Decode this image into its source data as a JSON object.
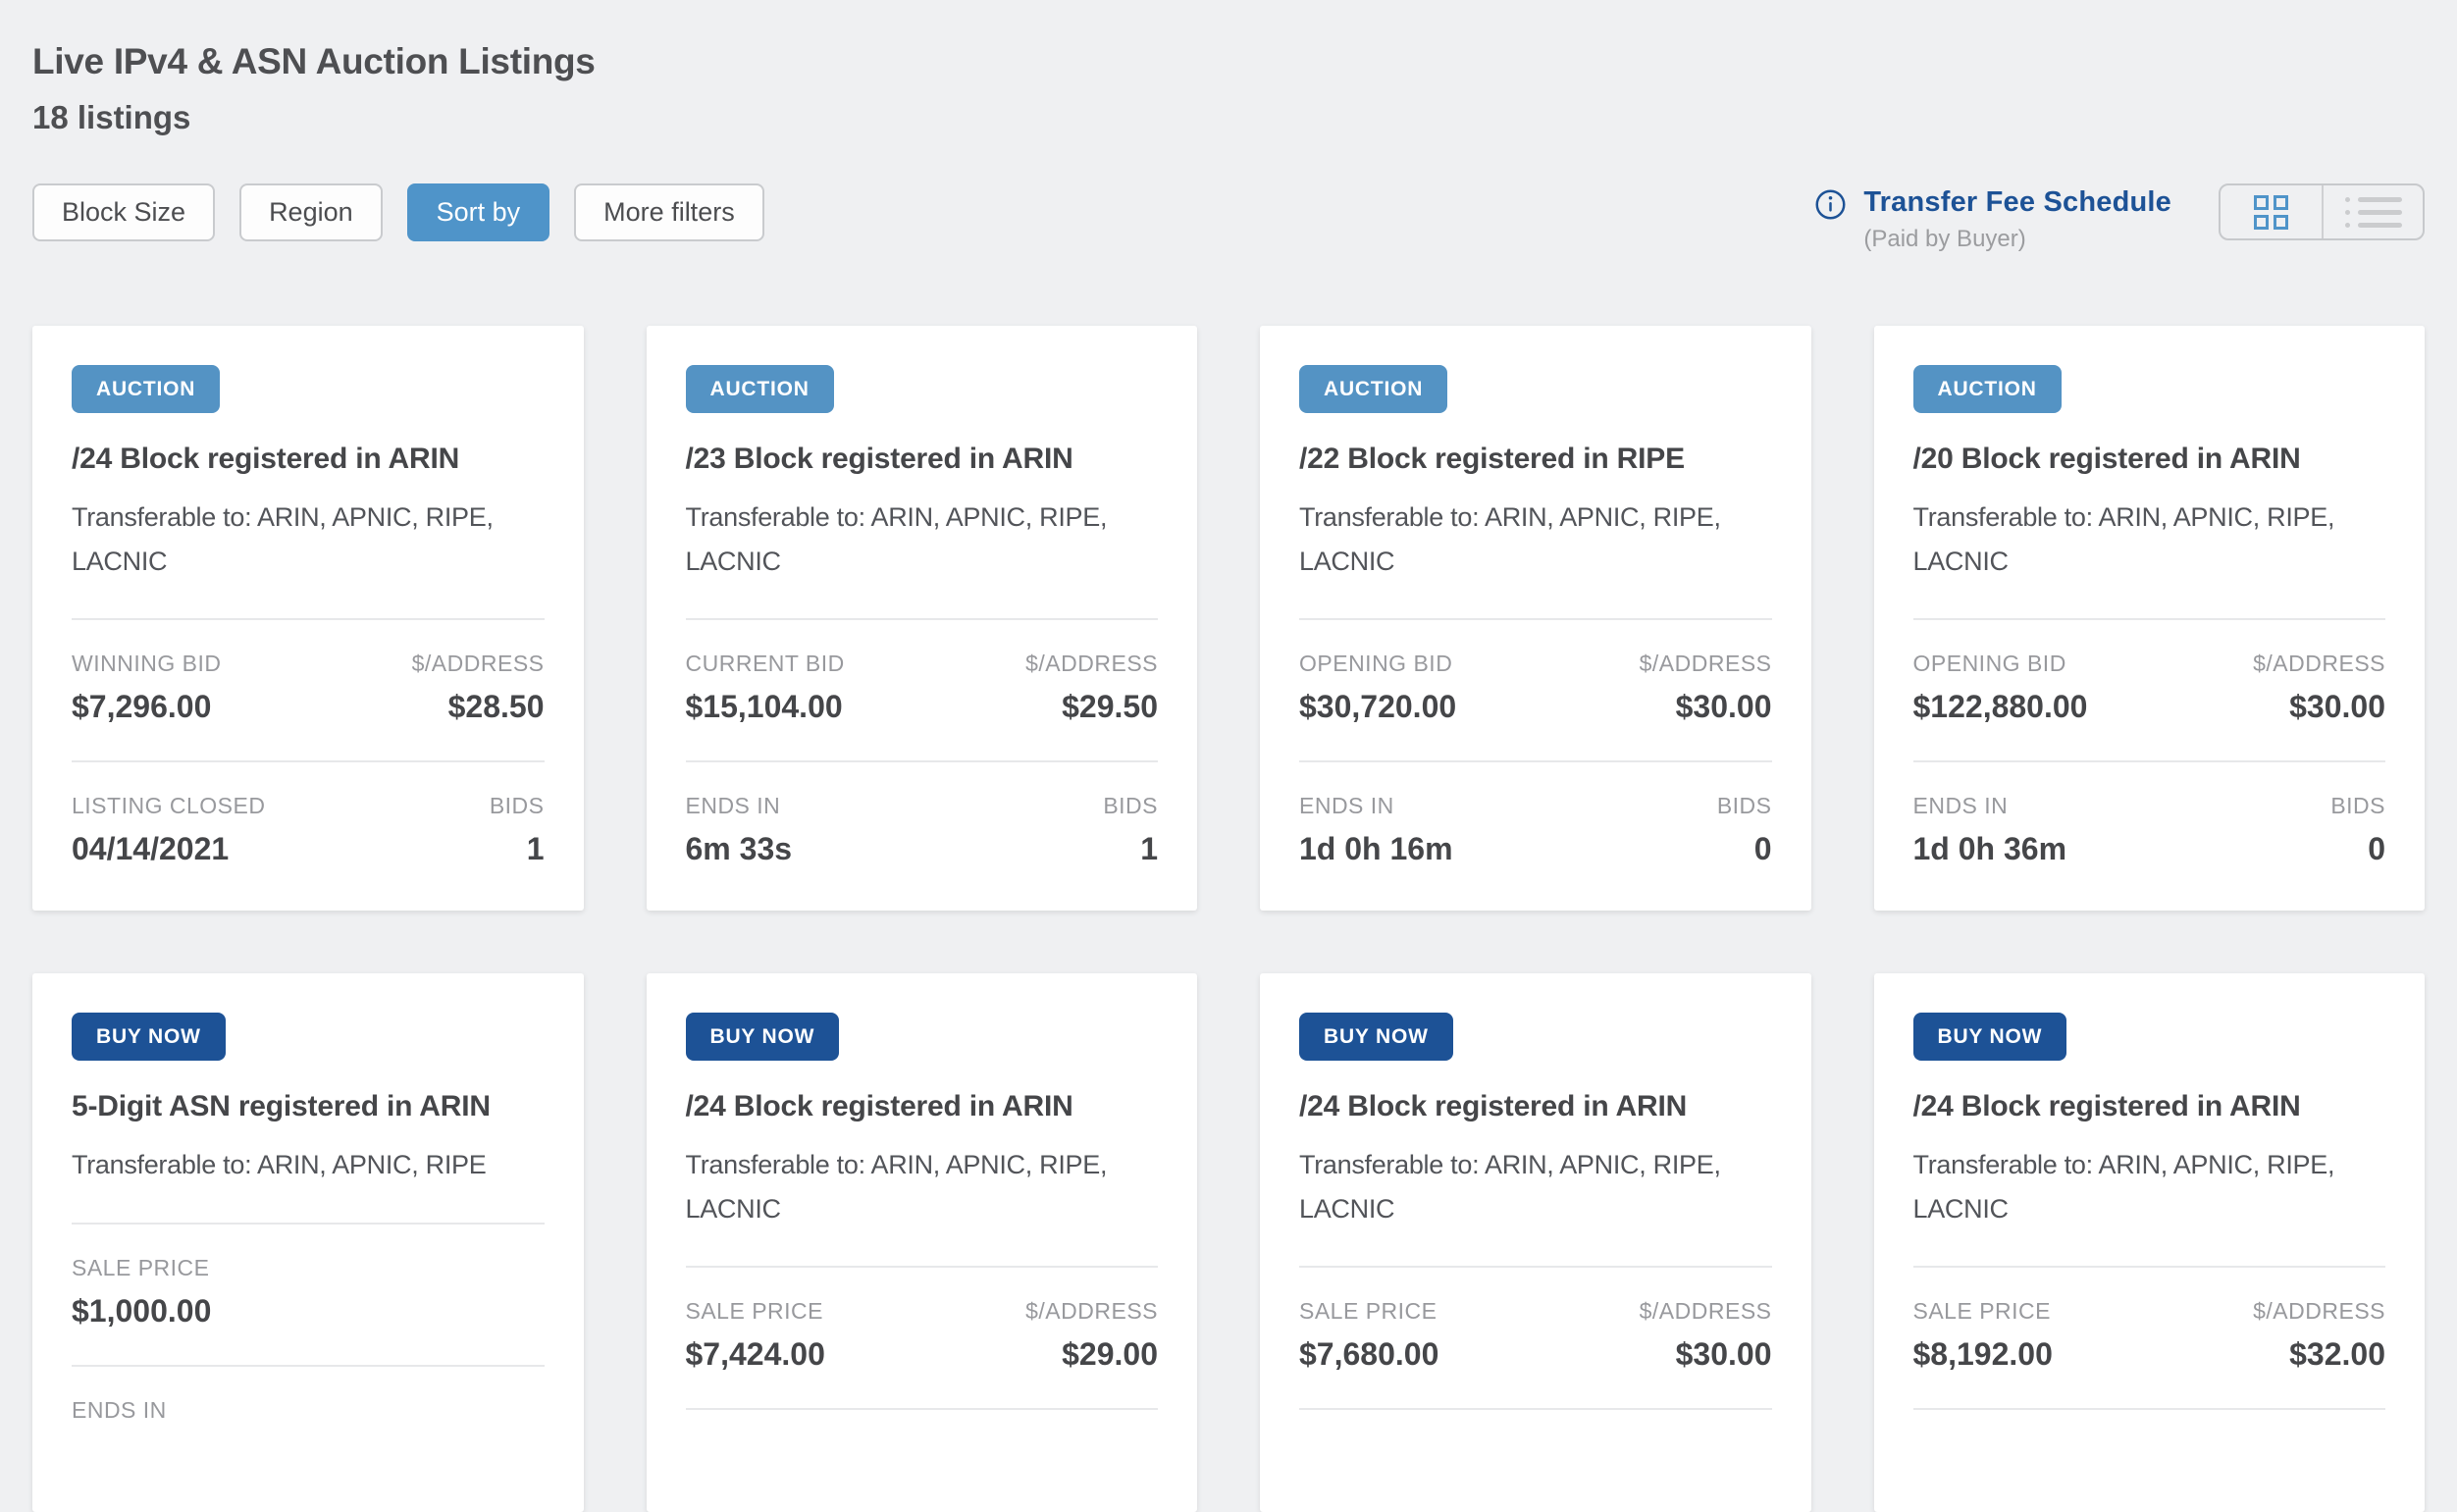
{
  "header": {
    "title": "Live IPv4 & ASN Auction Listings",
    "count": "18 listings"
  },
  "toolbar": {
    "filters": [
      {
        "label": "Block Size",
        "active": false
      },
      {
        "label": "Region",
        "active": false
      },
      {
        "label": "Sort by",
        "active": true
      },
      {
        "label": "More filters",
        "active": false
      }
    ],
    "fee_link": "Transfer Fee Schedule",
    "fee_note": "(Paid by Buyer)",
    "view_toggle": {
      "active": "grid",
      "options": [
        "grid",
        "list"
      ]
    }
  },
  "icons": {
    "info": "info-circle",
    "grid_view": "grid-squares",
    "list_view": "bulleted-list"
  },
  "colors": {
    "page_bg": "#eff0f2",
    "auction_badge": "#5493c4",
    "buy_now_badge": "#1d5296",
    "active_filter": "#4f94c9",
    "link_blue": "#1d5296"
  },
  "cards": [
    {
      "badge": "AUCTION",
      "badge_style": "auction",
      "title": "/24 Block registered in ARIN",
      "transferable": "Transferable to: ARIN, APNIC, RIPE, LACNIC",
      "rows": [
        {
          "left": {
            "label": "WINNING BID",
            "value": "$7,296.00"
          },
          "right": {
            "label": "$/ADDRESS",
            "value": "$28.50"
          }
        },
        {
          "left": {
            "label": "LISTING CLOSED",
            "value": "04/14/2021"
          },
          "right": {
            "label": "BIDS",
            "value": "1"
          }
        }
      ]
    },
    {
      "badge": "AUCTION",
      "badge_style": "auction",
      "title": "/23 Block registered in ARIN",
      "transferable": "Transferable to: ARIN, APNIC, RIPE, LACNIC",
      "rows": [
        {
          "left": {
            "label": "CURRENT BID",
            "value": "$15,104.00"
          },
          "right": {
            "label": "$/ADDRESS",
            "value": "$29.50"
          }
        },
        {
          "left": {
            "label": "ENDS IN",
            "value": "6m 33s"
          },
          "right": {
            "label": "BIDS",
            "value": "1"
          }
        }
      ]
    },
    {
      "badge": "AUCTION",
      "badge_style": "auction",
      "title": "/22 Block registered in RIPE",
      "transferable": "Transferable to: ARIN, APNIC, RIPE, LACNIC",
      "rows": [
        {
          "left": {
            "label": "OPENING BID",
            "value": "$30,720.00"
          },
          "right": {
            "label": "$/ADDRESS",
            "value": "$30.00"
          }
        },
        {
          "left": {
            "label": "ENDS IN",
            "value": "1d 0h 16m"
          },
          "right": {
            "label": "BIDS",
            "value": "0"
          }
        }
      ]
    },
    {
      "badge": "AUCTION",
      "badge_style": "auction",
      "title": "/20 Block registered in ARIN",
      "transferable": "Transferable to: ARIN, APNIC, RIPE, LACNIC",
      "rows": [
        {
          "left": {
            "label": "OPENING BID",
            "value": "$122,880.00"
          },
          "right": {
            "label": "$/ADDRESS",
            "value": "$30.00"
          }
        },
        {
          "left": {
            "label": "ENDS IN",
            "value": "1d 0h 36m"
          },
          "right": {
            "label": "BIDS",
            "value": "0"
          }
        }
      ]
    },
    {
      "badge": "BUY NOW",
      "badge_style": "buy-now",
      "title": "5-Digit ASN registered in ARIN",
      "transferable": "Transferable to: ARIN, APNIC, RIPE",
      "rows": [
        {
          "left": {
            "label": "SALE PRICE",
            "value": "$1,000.00"
          },
          "right": null
        },
        {
          "left": {
            "label": "ENDS IN",
            "value": ""
          },
          "right": null
        }
      ]
    },
    {
      "badge": "BUY NOW",
      "badge_style": "buy-now",
      "title": "/24 Block registered in ARIN",
      "transferable": "Transferable to: ARIN, APNIC, RIPE, LACNIC",
      "trailing_divider": true,
      "rows": [
        {
          "left": {
            "label": "SALE PRICE",
            "value": "$7,424.00"
          },
          "right": {
            "label": "$/ADDRESS",
            "value": "$29.00"
          }
        }
      ]
    },
    {
      "badge": "BUY NOW",
      "badge_style": "buy-now",
      "title": "/24 Block registered in ARIN",
      "transferable": "Transferable to: ARIN, APNIC, RIPE, LACNIC",
      "trailing_divider": true,
      "rows": [
        {
          "left": {
            "label": "SALE PRICE",
            "value": "$7,680.00"
          },
          "right": {
            "label": "$/ADDRESS",
            "value": "$30.00"
          }
        }
      ]
    },
    {
      "badge": "BUY NOW",
      "badge_style": "buy-now",
      "title": "/24 Block registered in ARIN",
      "transferable": "Transferable to: ARIN, APNIC, RIPE, LACNIC",
      "trailing_divider": true,
      "rows": [
        {
          "left": {
            "label": "SALE PRICE",
            "value": "$8,192.00"
          },
          "right": {
            "label": "$/ADDRESS",
            "value": "$32.00"
          }
        }
      ]
    }
  ]
}
